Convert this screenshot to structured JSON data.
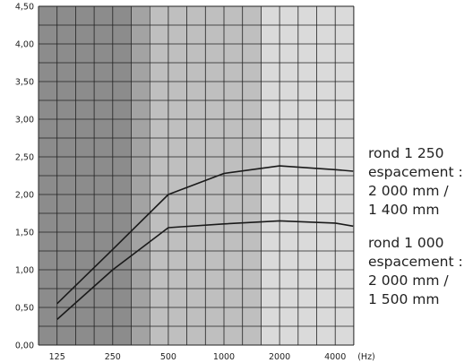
{
  "chart_data": {
    "type": "line",
    "x_tick_labels": [
      "125",
      "250",
      "500",
      "1000",
      "2000",
      "4000"
    ],
    "x_unit": "(Hz)",
    "y_tick_labels": [
      "0,00",
      "0,50",
      "1,00",
      "1,50",
      "2,00",
      "2,50",
      "3,00",
      "3,50",
      "4,00",
      "4,50"
    ],
    "ylim": [
      0,
      4.5
    ],
    "x_scale": "log",
    "grid": true,
    "legend_placement": "right",
    "series": [
      {
        "name": "rond 1 250 espacement : 2 000 mm / 1 400 mm",
        "label_lines": [
          "rond 1 250",
          "espacement :",
          "2 000 mm /",
          "1 400 mm"
        ],
        "x": [
          125,
          250,
          500,
          1000,
          2000,
          4000,
          5000
        ],
        "y": [
          0.55,
          1.27,
          2.0,
          2.28,
          2.38,
          2.33,
          2.31
        ]
      },
      {
        "name": "rond 1 000 espacement : 2 000 mm / 1 500 mm",
        "label_lines": [
          "rond 1 000",
          "espacement :",
          "2 000 mm /",
          "1 500 mm"
        ],
        "x": [
          125,
          250,
          500,
          1000,
          2000,
          4000,
          5000
        ],
        "y": [
          0.34,
          1.0,
          1.56,
          1.61,
          1.65,
          1.62,
          1.58
        ]
      }
    ],
    "band_colors": [
      "#8c8c8c",
      "#a3a3a3",
      "#bfbfbf",
      "#dadada"
    ],
    "line_color": "#1a1a1a"
  }
}
